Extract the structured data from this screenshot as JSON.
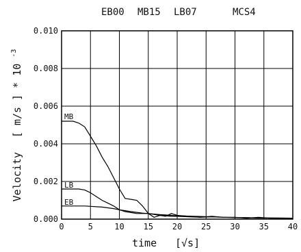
{
  "chart_data": {
    "type": "line",
    "title_parts": [
      "EB00",
      "MB15",
      "LB07",
      "MCS4"
    ],
    "xlabel": "time",
    "xlabel_unit": "[√s]",
    "ylabel": "Velocity",
    "ylabel_unit": "[ m/s ] * 10",
    "ylabel_exp": "-3",
    "xlim": [
      0,
      40
    ],
    "ylim": [
      0,
      0.01
    ],
    "grid": true,
    "x_ticks": [
      0,
      5,
      10,
      15,
      20,
      25,
      30,
      35,
      40
    ],
    "x_tick_labels": [
      "0",
      "5",
      "10",
      "15",
      "20",
      "25",
      "30",
      "35",
      "40"
    ],
    "y_ticks": [
      0,
      0.002,
      0.004,
      0.006,
      0.008,
      0.01
    ],
    "y_tick_labels": [
      "0.000",
      "0.002",
      "0.004",
      "0.006",
      "0.008",
      "0.010"
    ],
    "series": [
      {
        "name": "MB",
        "x": [
          0,
          1,
          2,
          3,
          4,
          5,
          6,
          7,
          8,
          9,
          10,
          11,
          12,
          13,
          14,
          15,
          16,
          17,
          18,
          19,
          20,
          22,
          24,
          26,
          28,
          30,
          32,
          34,
          36,
          38,
          40
        ],
        "values": [
          0.0052,
          0.0052,
          0.0052,
          0.0051,
          0.0049,
          0.0044,
          0.0039,
          0.0033,
          0.0028,
          0.0022,
          0.0016,
          0.0011,
          0.00105,
          0.001,
          0.0007,
          0.0003,
          0.0001,
          0.0002,
          0.00015,
          0.0003,
          0.0002,
          0.00015,
          0.0001,
          0.00015,
          0.0001,
          0.0001,
          5e-05,
          0.0001,
          5e-05,
          5e-05,
          5e-05
        ]
      },
      {
        "name": "LB",
        "x": [
          0,
          1,
          2,
          3,
          4,
          5,
          6,
          7,
          8,
          9,
          10,
          11,
          12,
          13,
          14,
          15,
          16,
          17,
          18,
          19,
          20,
          22,
          24,
          26,
          28,
          30,
          32,
          34,
          36,
          38,
          40
        ],
        "values": [
          0.0016,
          0.0016,
          0.0016,
          0.0016,
          0.00155,
          0.0014,
          0.0012,
          0.001,
          0.00085,
          0.0007,
          0.0005,
          0.0004,
          0.00035,
          0.0003,
          0.0003,
          0.0003,
          0.00025,
          0.0002,
          0.00018,
          0.00015,
          0.00015,
          0.00012,
          0.0001,
          0.00012,
          0.0001,
          8e-05,
          8e-05,
          6e-05,
          6e-05,
          5e-05,
          5e-05
        ]
      },
      {
        "name": "EB",
        "x": [
          0,
          1,
          2,
          3,
          4,
          5,
          6,
          7,
          8,
          9,
          10,
          11,
          12,
          13,
          14,
          15,
          16,
          17,
          18,
          19,
          20,
          22,
          24,
          26,
          28,
          30,
          32,
          34,
          36,
          38,
          40
        ],
        "values": [
          0.0007,
          0.0007,
          0.0007,
          0.0007,
          0.0007,
          0.00068,
          0.00066,
          0.00064,
          0.0006,
          0.00056,
          0.0005,
          0.00045,
          0.0004,
          0.00036,
          0.00032,
          0.0003,
          0.00027,
          0.00024,
          0.00022,
          0.0002,
          0.00018,
          0.00016,
          0.00014,
          0.00012,
          0.0001,
          9e-05,
          8e-05,
          7e-05,
          6e-05,
          6e-05,
          5e-05
        ]
      }
    ]
  }
}
